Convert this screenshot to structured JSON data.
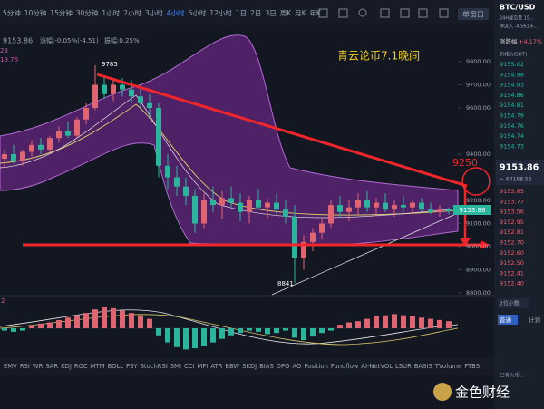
{
  "toolbar": {
    "intervals": [
      "5分钟",
      "10分钟",
      "15分钟",
      "30分钟",
      "1小时",
      "2小时",
      "3小时",
      "4小时",
      "6小时",
      "12小时",
      "1日",
      "2日",
      "3日",
      "周K",
      "月K",
      "年K"
    ],
    "active": "4小时",
    "window_button": "单窗口"
  },
  "info": {
    "price": "9153.86",
    "change": "涨幅:-0.05%(-4.51)",
    "amplitude": "振幅:0.25%",
    "left_1": "23",
    "left_2": "19.76"
  },
  "chart": {
    "price_axis": [
      {
        "value": 9800,
        "label": "9800.00"
      },
      {
        "value": 9700,
        "label": "9700.00"
      },
      {
        "value": 9600,
        "label": "9600.00"
      },
      {
        "value": 9400,
        "label": "9400.00"
      },
      {
        "value": 9200,
        "label": "9200.00"
      },
      {
        "value": 9100,
        "label": "9100.00"
      },
      {
        "value": 9000,
        "label": "9000.00"
      },
      {
        "value": 8900,
        "label": "8900.00"
      },
      {
        "value": 8800,
        "label": "8800.00"
      }
    ],
    "candles": [
      [
        9380,
        9420,
        9340,
        9400
      ],
      [
        9400,
        9440,
        9360,
        9370
      ],
      [
        9370,
        9420,
        9350,
        9410
      ],
      [
        9410,
        9460,
        9390,
        9440
      ],
      [
        9440,
        9470,
        9400,
        9420
      ],
      [
        9420,
        9480,
        9410,
        9470
      ],
      [
        9470,
        9520,
        9450,
        9500
      ],
      [
        9500,
        9540,
        9470,
        9480
      ],
      [
        9480,
        9560,
        9470,
        9550
      ],
      [
        9550,
        9620,
        9530,
        9600
      ],
      [
        9600,
        9785,
        9590,
        9700
      ],
      [
        9700,
        9740,
        9640,
        9660
      ],
      [
        9660,
        9720,
        9630,
        9700
      ],
      [
        9700,
        9730,
        9650,
        9680
      ],
      [
        9680,
        9720,
        9620,
        9650
      ],
      [
        9650,
        9700,
        9600,
        9620
      ],
      [
        9620,
        9660,
        9560,
        9600
      ],
      [
        9600,
        9620,
        9300,
        9350
      ],
      [
        9350,
        9400,
        9250,
        9300
      ],
      [
        9300,
        9350,
        9220,
        9260
      ],
      [
        9260,
        9300,
        9180,
        9220
      ],
      [
        9220,
        9250,
        9060,
        9100
      ],
      [
        9100,
        9230,
        9080,
        9200
      ],
      [
        9200,
        9260,
        9150,
        9180
      ],
      [
        9180,
        9240,
        9120,
        9210
      ],
      [
        9210,
        9260,
        9170,
        9190
      ],
      [
        9190,
        9230,
        9110,
        9150
      ],
      [
        9150,
        9220,
        9100,
        9200
      ],
      [
        9200,
        9250,
        9160,
        9170
      ],
      [
        9170,
        9210,
        9120,
        9190
      ],
      [
        9190,
        9230,
        9140,
        9160
      ],
      [
        9160,
        9200,
        9100,
        9130
      ],
      [
        9130,
        9180,
        8841,
        8950
      ],
      [
        8950,
        9050,
        8900,
        9020
      ],
      [
        9020,
        9080,
        8980,
        9060
      ],
      [
        9060,
        9120,
        9030,
        9100
      ],
      [
        9100,
        9200,
        9080,
        9180
      ],
      [
        9180,
        9220,
        9130,
        9150
      ],
      [
        9150,
        9200,
        9110,
        9170
      ],
      [
        9170,
        9230,
        9140,
        9200
      ],
      [
        9200,
        9240,
        9150,
        9170
      ],
      [
        9170,
        9210,
        9140,
        9190
      ],
      [
        9190,
        9230,
        9150,
        9160
      ],
      [
        9160,
        9200,
        9130,
        9180
      ],
      [
        9180,
        9220,
        9150,
        9170
      ],
      [
        9170,
        9200,
        9140,
        9190
      ],
      [
        9190,
        9210,
        9150,
        9160
      ],
      [
        9160,
        9190,
        9140,
        9150
      ],
      [
        9150,
        9180,
        9130,
        9160
      ],
      [
        9160,
        9170,
        9140,
        9153.86
      ]
    ],
    "macd_hist": [
      -2,
      -3,
      -2,
      2,
      4,
      5,
      7,
      9,
      11,
      13,
      16,
      18,
      17,
      15,
      13,
      11,
      8,
      -6,
      -12,
      -16,
      -18,
      -17,
      -15,
      -12,
      -9,
      -6,
      -4,
      -2,
      -3,
      -5,
      -4,
      -2,
      -8,
      -10,
      -7,
      -4,
      -2,
      3,
      5,
      6,
      8,
      10,
      11,
      12,
      11,
      10,
      9,
      8,
      7,
      6
    ],
    "macd_label": "2",
    "high_label": "9785",
    "low_label": "8841",
    "target_label": "9250",
    "note": "青云论币7.1晚间",
    "current_price": "9153.86"
  },
  "indicator_tabs": [
    "EMV",
    "RSI",
    "WR",
    "SAR",
    "KDJ",
    "ROC",
    "MTM",
    "BOLL",
    "PSY",
    "StochRSI",
    "SMI",
    "CCI",
    "MFI",
    "ATR",
    "BBW",
    "SKDJ",
    "BIAS",
    "DPO",
    "AO",
    "Position",
    "Fundflow",
    "AI-NetVOL",
    "LSUR",
    "BASIS",
    "TVolume",
    "FTBS"
  ],
  "order_book": {
    "pair": "BTC/USD",
    "volume": "24H成交量 15...",
    "change_label": "涨跌幅",
    "change": "+4.17%",
    "sub": "净流入 -4,561.6...",
    "column": "价格(USDT)",
    "asks": [
      "9155.02",
      "9154.98",
      "9154.93",
      "9154.86",
      "9154.81",
      "9154.79",
      "9154.76",
      "9154.74",
      "9154.73"
    ],
    "last": "9153.86",
    "approx": "≈ 64168.56",
    "bids": [
      "9153.85",
      "9153.77",
      "9153.56",
      "9152.95",
      "9152.81",
      "9152.70",
      "9152.60",
      "9152.50",
      "9152.41",
      "9152.40"
    ],
    "decimals": "2位小数",
    "tab_normal": "普通",
    "tab_plan": "计划",
    "notice": "已有火币..."
  },
  "logo": "金色财经"
}
